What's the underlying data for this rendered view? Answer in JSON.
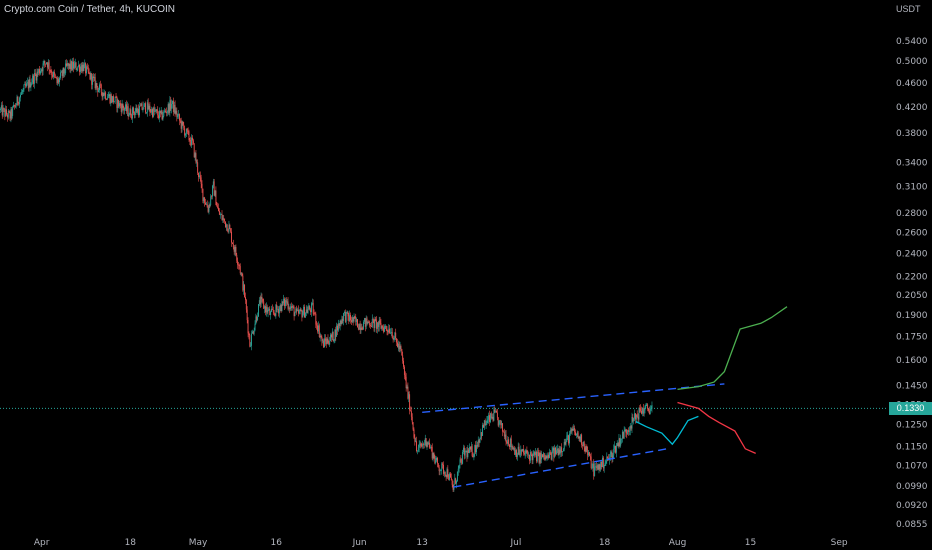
{
  "chart_data": {
    "type": "candlestick",
    "title": "Crypto.com Coin / Tether, 4h, KUCOIN",
    "unit": "USDT",
    "scale": "log",
    "ylim": [
      0.083,
      0.585
    ],
    "xlim": [
      "2021-03-24",
      "2021-09-10"
    ],
    "y_ticks": [
      0.54,
      0.5,
      0.46,
      0.42,
      0.38,
      0.34,
      0.31,
      0.28,
      0.26,
      0.24,
      0.22,
      0.205,
      0.19,
      0.175,
      0.16,
      0.145,
      0.135,
      0.125,
      0.115,
      0.107,
      0.099,
      0.092,
      0.0855
    ],
    "x_ticks": [
      {
        "label": "Apr",
        "date": "2021-04-01"
      },
      {
        "label": "18",
        "date": "2021-04-18"
      },
      {
        "label": "May",
        "date": "2021-05-01"
      },
      {
        "label": "16",
        "date": "2021-05-16"
      },
      {
        "label": "Jun",
        "date": "2021-06-01"
      },
      {
        "label": "13",
        "date": "2021-06-13"
      },
      {
        "label": "Jul",
        "date": "2021-07-01"
      },
      {
        "label": "18",
        "date": "2021-07-18"
      },
      {
        "label": "Aug",
        "date": "2021-08-01"
      },
      {
        "label": "15",
        "date": "2021-08-15"
      },
      {
        "label": "Sep",
        "date": "2021-09-01"
      }
    ],
    "current_price": "0.1330",
    "price_path": [
      [
        "2021-03-24",
        0.415
      ],
      [
        "2021-03-26",
        0.405
      ],
      [
        "2021-03-28",
        0.44
      ],
      [
        "2021-03-31",
        0.475
      ],
      [
        "2021-04-02",
        0.5
      ],
      [
        "2021-04-04",
        0.46
      ],
      [
        "2021-04-06",
        0.49
      ],
      [
        "2021-04-09",
        0.49
      ],
      [
        "2021-04-12",
        0.45
      ],
      [
        "2021-04-15",
        0.43
      ],
      [
        "2021-04-18",
        0.41
      ],
      [
        "2021-04-21",
        0.42
      ],
      [
        "2021-04-24",
        0.405
      ],
      [
        "2021-04-26",
        0.425
      ],
      [
        "2021-04-28",
        0.39
      ],
      [
        "2021-04-30",
        0.365
      ],
      [
        "2021-05-02",
        0.3
      ],
      [
        "2021-05-03",
        0.285
      ],
      [
        "2021-05-04",
        0.31
      ],
      [
        "2021-05-05",
        0.28
      ],
      [
        "2021-05-07",
        0.265
      ],
      [
        "2021-05-08",
        0.245
      ],
      [
        "2021-05-09",
        0.23
      ],
      [
        "2021-05-10",
        0.205
      ],
      [
        "2021-05-11",
        0.17
      ],
      [
        "2021-05-12",
        0.185
      ],
      [
        "2021-05-13",
        0.2
      ],
      [
        "2021-05-15",
        0.19
      ],
      [
        "2021-05-18",
        0.2
      ],
      [
        "2021-05-20",
        0.19
      ],
      [
        "2021-05-23",
        0.195
      ],
      [
        "2021-05-25",
        0.17
      ],
      [
        "2021-05-27",
        0.175
      ],
      [
        "2021-05-29",
        0.19
      ],
      [
        "2021-06-01",
        0.183
      ],
      [
        "2021-06-03",
        0.185
      ],
      [
        "2021-06-05",
        0.182
      ],
      [
        "2021-06-07",
        0.18
      ],
      [
        "2021-06-09",
        0.165
      ],
      [
        "2021-06-10",
        0.145
      ],
      [
        "2021-06-11",
        0.13
      ],
      [
        "2021-06-12",
        0.113
      ],
      [
        "2021-06-14",
        0.118
      ],
      [
        "2021-06-16",
        0.107
      ],
      [
        "2021-06-18",
        0.104
      ],
      [
        "2021-06-19",
        0.098
      ],
      [
        "2021-06-21",
        0.112
      ],
      [
        "2021-06-23",
        0.113
      ],
      [
        "2021-06-25",
        0.125
      ],
      [
        "2021-06-27",
        0.13
      ],
      [
        "2021-06-29",
        0.12
      ],
      [
        "2021-07-01",
        0.113
      ],
      [
        "2021-07-04",
        0.111
      ],
      [
        "2021-07-07",
        0.11
      ],
      [
        "2021-07-10",
        0.115
      ],
      [
        "2021-07-12",
        0.122
      ],
      [
        "2021-07-14",
        0.117
      ],
      [
        "2021-07-16",
        0.105
      ],
      [
        "2021-07-19",
        0.11
      ],
      [
        "2021-07-21",
        0.118
      ],
      [
        "2021-07-23",
        0.125
      ],
      [
        "2021-07-25",
        0.132
      ],
      [
        "2021-07-27",
        0.133
      ]
    ],
    "annotations": {
      "channel_upper": {
        "color": "#2962ff",
        "style": "dashed",
        "points": [
          [
            "2021-06-13",
            0.131
          ],
          [
            "2021-08-10",
            0.146
          ]
        ]
      },
      "channel_lower": {
        "color": "#2962ff",
        "style": "dashed",
        "points": [
          [
            "2021-06-19",
            0.0985
          ],
          [
            "2021-07-30",
            0.114
          ]
        ]
      },
      "bullish_path": {
        "color": "#4caf50",
        "points": [
          [
            "2021-08-01",
            0.143
          ],
          [
            "2021-08-05",
            0.1445
          ],
          [
            "2021-08-08",
            0.147
          ],
          [
            "2021-08-10",
            0.153
          ],
          [
            "2021-08-13",
            0.18
          ],
          [
            "2021-08-17",
            0.184
          ],
          [
            "2021-08-19",
            0.188
          ],
          [
            "2021-08-22",
            0.196
          ]
        ]
      },
      "bearish_path": {
        "color": "#f23645",
        "points": [
          [
            "2021-08-01",
            0.136
          ],
          [
            "2021-08-05",
            0.133
          ],
          [
            "2021-08-07",
            0.129
          ],
          [
            "2021-08-09",
            0.126
          ],
          [
            "2021-08-12",
            0.122
          ],
          [
            "2021-08-14",
            0.114
          ],
          [
            "2021-08-16",
            0.112
          ]
        ]
      },
      "range_path": {
        "color": "#00bcd4",
        "points": [
          [
            "2021-07-24",
            0.1265
          ],
          [
            "2021-07-26",
            0.124
          ],
          [
            "2021-07-29",
            0.121
          ],
          [
            "2021-07-31",
            0.116
          ],
          [
            "2021-08-01",
            0.119
          ],
          [
            "2021-08-03",
            0.127
          ],
          [
            "2021-08-05",
            0.129
          ]
        ]
      }
    },
    "colors": {
      "up": "#26a69a",
      "down": "#ef5350",
      "background": "#000000",
      "axis_text": "#b2b5be",
      "price_line": "#26a69a"
    }
  }
}
